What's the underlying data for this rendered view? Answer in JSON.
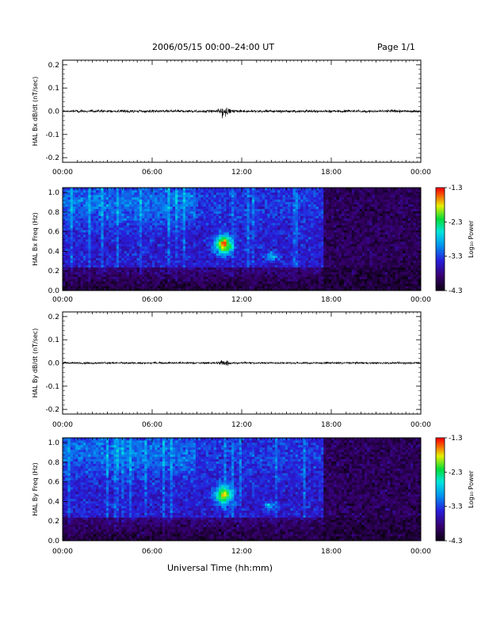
{
  "header": {
    "date_range": "2006/05/15  00:00–24:00 UT",
    "page": "Page 1/1"
  },
  "x_axis": {
    "label": "Universal Time (hh:mm)",
    "tick_labels": [
      "00:00",
      "06:00",
      "12:00",
      "18:00",
      "00:00"
    ]
  },
  "chart_data": [
    {
      "type": "line",
      "ylabel": "HAL Bx dB/dt (nT/sec)",
      "xlim": [
        0,
        24
      ],
      "ylim": [
        -0.22,
        0.22
      ],
      "y_tick_labels": [
        "0.2",
        "0.1",
        "0.0",
        "-0.1",
        "-0.2"
      ],
      "y_ticks": [
        0.2,
        0.1,
        0.0,
        -0.1,
        -0.2
      ],
      "noise_level": 0.004,
      "burst": {
        "center_hr": 10.8,
        "amplitude": 0.02,
        "width_hr": 0.35
      }
    },
    {
      "type": "heatmap",
      "ylabel": "HAL Bx Freq (Hz)",
      "xlim": [
        0,
        24
      ],
      "ylim": [
        0,
        1.05
      ],
      "y_tick_labels": [
        "1.0",
        "0.8",
        "0.6",
        "0.4",
        "0.2",
        "0.0"
      ],
      "y_ticks": [
        1.0,
        0.8,
        0.6,
        0.4,
        0.2,
        0.0
      ],
      "colorbar": {
        "label": "Log₁₀ Power",
        "range": [
          -4.3,
          -1.3
        ],
        "tick_labels": [
          "-1.3",
          "-2.3",
          "-3.3",
          "-4.3"
        ],
        "ticks": [
          -1.3,
          -2.3,
          -3.3,
          -4.3
        ]
      },
      "features": {
        "cutoff_hr": 17.5,
        "before_cutoff_level": -3.45,
        "after_cutoff_level": -3.95,
        "low_freq_band_level": -4.1,
        "main_emission": {
          "center_hr": 10.8,
          "freq_hz": 0.47,
          "peak": -1.5
        },
        "secondary_emission": {
          "center_hr": 14.0,
          "freq_hz": 0.35,
          "peak": -2.6
        }
      }
    },
    {
      "type": "line",
      "ylabel": "HAL By dB/dt (nT/sec)",
      "xlim": [
        0,
        24
      ],
      "ylim": [
        -0.22,
        0.22
      ],
      "y_tick_labels": [
        "0.2",
        "0.1",
        "0.0",
        "-0.1",
        "-0.2"
      ],
      "y_ticks": [
        0.2,
        0.1,
        0.0,
        -0.1,
        -0.2
      ],
      "noise_level": 0.003,
      "burst": {
        "center_hr": 10.8,
        "amplitude": 0.012,
        "width_hr": 0.35
      }
    },
    {
      "type": "heatmap",
      "ylabel": "HAL By Freq (Hz)",
      "xlim": [
        0,
        24
      ],
      "ylim": [
        0,
        1.05
      ],
      "y_tick_labels": [
        "1.0",
        "0.8",
        "0.6",
        "0.4",
        "0.2",
        "0.0"
      ],
      "y_ticks": [
        1.0,
        0.8,
        0.6,
        0.4,
        0.2,
        0.0
      ],
      "colorbar": {
        "label": "Log₁₀ Power",
        "range": [
          -4.3,
          -1.3
        ],
        "tick_labels": [
          "-1.3",
          "-2.3",
          "-3.3",
          "-4.3"
        ],
        "ticks": [
          -1.3,
          -2.3,
          -3.3,
          -4.3
        ]
      },
      "features": {
        "cutoff_hr": 17.5,
        "before_cutoff_level": -3.45,
        "after_cutoff_level": -3.95,
        "low_freq_band_level": -4.1,
        "main_emission": {
          "center_hr": 10.8,
          "freq_hz": 0.47,
          "peak": -1.8
        },
        "secondary_emission": {
          "center_hr": 13.9,
          "freq_hz": 0.36,
          "peak": -2.6
        }
      }
    }
  ]
}
